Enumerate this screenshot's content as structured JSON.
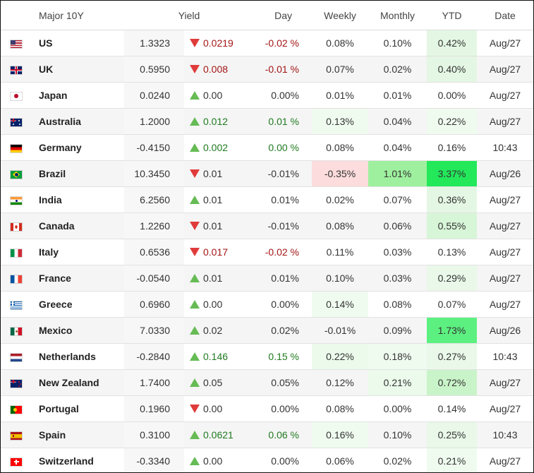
{
  "header": {
    "name": "Major 10Y",
    "yield": "Yield",
    "day": "Day",
    "weekly": "Weekly",
    "monthly": "Monthly",
    "ytd": "YTD",
    "date": "Date"
  },
  "rows": [
    {
      "country": "US",
      "flag": "us-flag-icon",
      "yield": "1.3323",
      "dir": "down",
      "change": "0.0219",
      "day": "-0.02 %",
      "day_dir": "neg",
      "weekly": "0.08%",
      "weekly_bg": "",
      "monthly": "0.10%",
      "monthly_bg": "",
      "ytd": "0.42%",
      "ytd_bg": "#e4f7e4",
      "date": "Aug/27"
    },
    {
      "country": "UK",
      "flag": "uk-flag-icon",
      "yield": "0.5950",
      "dir": "down",
      "change": "0.008",
      "day": "-0.01 %",
      "day_dir": "neg",
      "weekly": "0.07%",
      "weekly_bg": "",
      "monthly": "0.02%",
      "monthly_bg": "",
      "ytd": "0.40%",
      "ytd_bg": "#e4f7e4",
      "date": "Aug/27"
    },
    {
      "country": "Japan",
      "flag": "japan-flag-icon",
      "yield": "0.0240",
      "dir": "up",
      "change": "0.00",
      "day": "0.00%",
      "day_dir": "",
      "weekly": "0.01%",
      "weekly_bg": "",
      "monthly": "0.01%",
      "monthly_bg": "",
      "ytd": "0.00%",
      "ytd_bg": "",
      "date": "Aug/27"
    },
    {
      "country": "Australia",
      "flag": "australia-flag-icon",
      "yield": "1.2000",
      "dir": "up",
      "change": "0.012",
      "day": "0.01 %",
      "day_dir": "pos",
      "weekly": "0.13%",
      "weekly_bg": "#f0fbf0",
      "monthly": "0.04%",
      "monthly_bg": "",
      "ytd": "0.22%",
      "ytd_bg": "#f0fbf0",
      "date": "Aug/27"
    },
    {
      "country": "Germany",
      "flag": "germany-flag-icon",
      "yield": "-0.4150",
      "dir": "up",
      "change": "0.002",
      "day": "0.00 %",
      "day_dir": "pos",
      "weekly": "0.08%",
      "weekly_bg": "",
      "monthly": "0.04%",
      "monthly_bg": "",
      "ytd": "0.16%",
      "ytd_bg": "",
      "date": "10:43"
    },
    {
      "country": "Brazil",
      "flag": "brazil-flag-icon",
      "yield": "10.3450",
      "dir": "down",
      "change": "0.01",
      "day": "-0.01%",
      "day_dir": "",
      "weekly": "-0.35%",
      "weekly_bg": "#fcdcdc",
      "monthly": "1.01%",
      "monthly_bg": "#9ef09e",
      "ytd": "3.37%",
      "ytd_bg": "#22e85a",
      "date": "Aug/26"
    },
    {
      "country": "India",
      "flag": "india-flag-icon",
      "yield": "6.2560",
      "dir": "up",
      "change": "0.01",
      "day": "0.01%",
      "day_dir": "",
      "weekly": "0.02%",
      "weekly_bg": "",
      "monthly": "0.07%",
      "monthly_bg": "",
      "ytd": "0.36%",
      "ytd_bg": "#e4f7e4",
      "date": "Aug/27"
    },
    {
      "country": "Canada",
      "flag": "canada-flag-icon",
      "yield": "1.2260",
      "dir": "down",
      "change": "0.01",
      "day": "-0.01%",
      "day_dir": "",
      "weekly": "0.08%",
      "weekly_bg": "",
      "monthly": "0.06%",
      "monthly_bg": "",
      "ytd": "0.55%",
      "ytd_bg": "#d7f5d7",
      "date": "Aug/27"
    },
    {
      "country": "Italy",
      "flag": "italy-flag-icon",
      "yield": "0.6536",
      "dir": "down",
      "change": "0.017",
      "day": "-0.02 %",
      "day_dir": "neg",
      "weekly": "0.11%",
      "weekly_bg": "",
      "monthly": "0.03%",
      "monthly_bg": "",
      "ytd": "0.13%",
      "ytd_bg": "",
      "date": "Aug/27"
    },
    {
      "country": "France",
      "flag": "france-flag-icon",
      "yield": "-0.0540",
      "dir": "up",
      "change": "0.01",
      "day": "0.01%",
      "day_dir": "",
      "weekly": "0.10%",
      "weekly_bg": "",
      "monthly": "0.03%",
      "monthly_bg": "",
      "ytd": "0.29%",
      "ytd_bg": "#e9f8e9",
      "date": "Aug/27"
    },
    {
      "country": "Greece",
      "flag": "greece-flag-icon",
      "yield": "0.6960",
      "dir": "up",
      "change": "0.00",
      "day": "0.00%",
      "day_dir": "",
      "weekly": "0.14%",
      "weekly_bg": "#f0fbf0",
      "monthly": "0.08%",
      "monthly_bg": "",
      "ytd": "0.07%",
      "ytd_bg": "",
      "date": "Aug/27"
    },
    {
      "country": "Mexico",
      "flag": "mexico-flag-icon",
      "yield": "7.0330",
      "dir": "up",
      "change": "0.02",
      "day": "0.02%",
      "day_dir": "",
      "weekly": "-0.01%",
      "weekly_bg": "",
      "monthly": "0.09%",
      "monthly_bg": "",
      "ytd": "1.73%",
      "ytd_bg": "#5cf080",
      "date": "Aug/26"
    },
    {
      "country": "Netherlands",
      "flag": "netherlands-flag-icon",
      "yield": "-0.2840",
      "dir": "up",
      "change": "0.146",
      "day": "0.15 %",
      "day_dir": "pos",
      "weekly": "0.22%",
      "weekly_bg": "#ebfaeb",
      "monthly": "0.18%",
      "monthly_bg": "#f0fbf0",
      "ytd": "0.27%",
      "ytd_bg": "#e9f8e9",
      "date": "10:43"
    },
    {
      "country": "New Zealand",
      "flag": "new-zealand-flag-icon",
      "yield": "1.7400",
      "dir": "up",
      "change": "0.05",
      "day": "0.05%",
      "day_dir": "",
      "weekly": "0.12%",
      "weekly_bg": "",
      "monthly": "0.21%",
      "monthly_bg": "#ebfaeb",
      "ytd": "0.72%",
      "ytd_bg": "#c9f4c9",
      "date": "Aug/27"
    },
    {
      "country": "Portugal",
      "flag": "portugal-flag-icon",
      "yield": "0.1960",
      "dir": "down",
      "change": "0.00",
      "day": "0.00%",
      "day_dir": "",
      "weekly": "0.08%",
      "weekly_bg": "",
      "monthly": "0.00%",
      "monthly_bg": "",
      "ytd": "0.14%",
      "ytd_bg": "",
      "date": "Aug/27"
    },
    {
      "country": "Spain",
      "flag": "spain-flag-icon",
      "yield": "0.3100",
      "dir": "up",
      "change": "0.0621",
      "day": "0.06 %",
      "day_dir": "pos",
      "weekly": "0.16%",
      "weekly_bg": "#f0fbf0",
      "monthly": "0.10%",
      "monthly_bg": "",
      "ytd": "0.25%",
      "ytd_bg": "#e9f8e9",
      "date": "10:43"
    },
    {
      "country": "Switzerland",
      "flag": "switzerland-flag-icon",
      "yield": "-0.3340",
      "dir": "up",
      "change": "0.00",
      "day": "0.00%",
      "day_dir": "",
      "weekly": "0.06%",
      "weekly_bg": "",
      "monthly": "0.02%",
      "monthly_bg": "",
      "ytd": "0.21%",
      "ytd_bg": "#f0fbf0",
      "date": "Aug/27"
    }
  ]
}
